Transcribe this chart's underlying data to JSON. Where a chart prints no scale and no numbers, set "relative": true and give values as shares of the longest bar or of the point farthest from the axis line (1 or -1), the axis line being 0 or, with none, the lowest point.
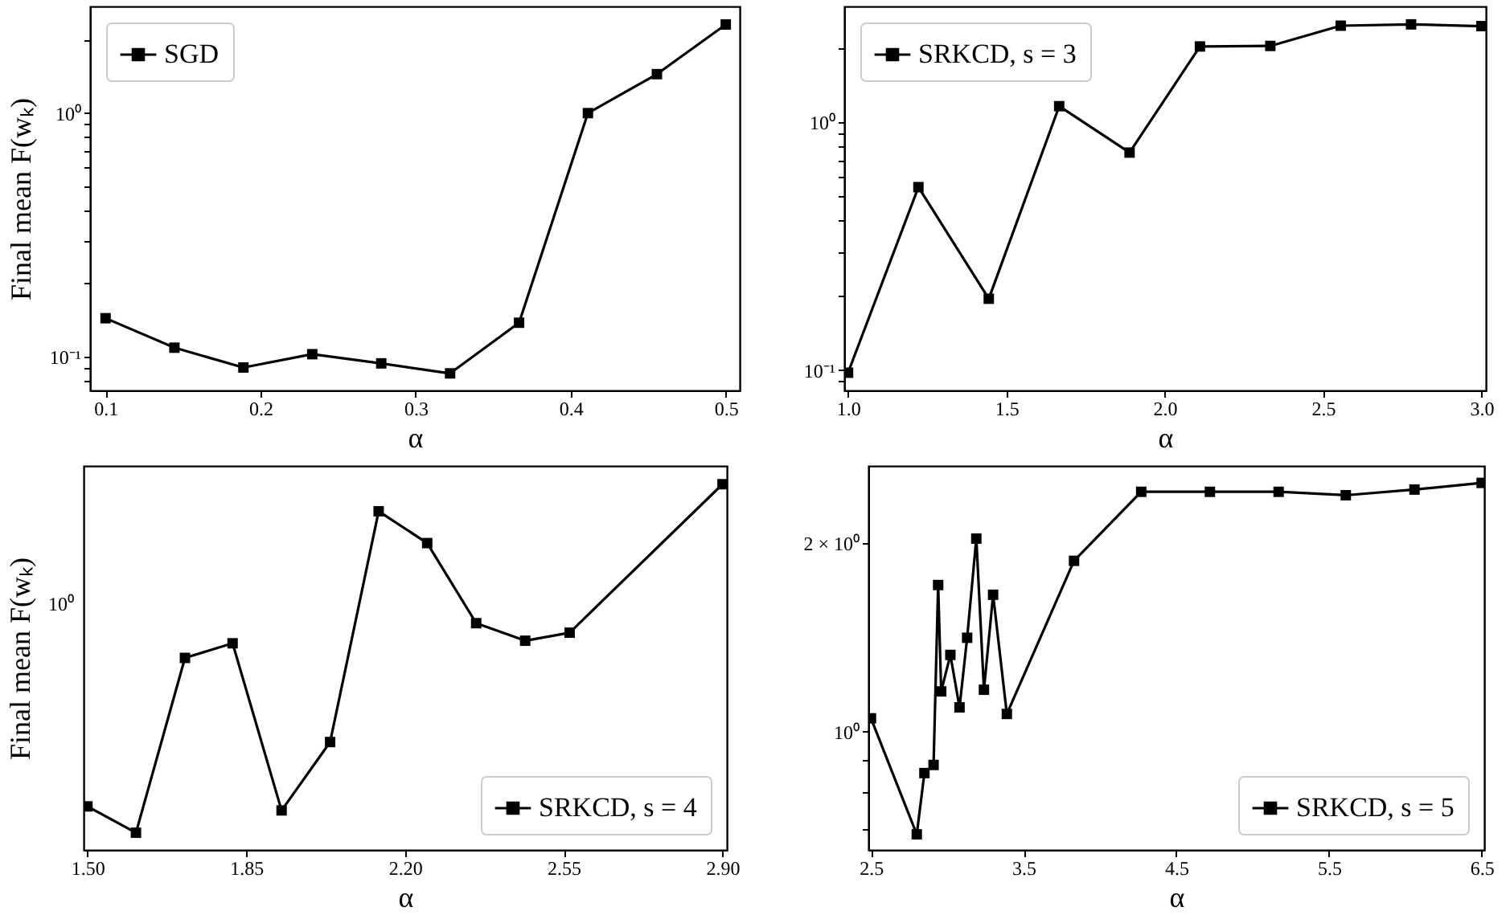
{
  "chart_data": [
    {
      "type": "line",
      "xlabel": "α",
      "ylabel": "Final mean F(wₖ)",
      "log": true,
      "legend": "top left",
      "marker": "square",
      "line_style": "solid",
      "x": [
        0.1,
        0.1444,
        0.1889,
        0.2333,
        0.2778,
        0.3222,
        0.3667,
        0.4111,
        0.4556,
        0.5
      ],
      "series": [
        {
          "name": "SGD",
          "color": "#000000",
          "values": [
            0.144,
            0.109,
            0.0904,
            0.1025,
            0.094,
            0.0855,
            0.138,
            1.0,
            1.445,
            2.31
          ]
        }
      ],
      "xlim": [
        0.09,
        0.509
      ],
      "xticks": [
        0.1,
        0.2,
        0.3,
        0.4,
        0.5
      ],
      "ylim": [
        0.0728,
        2.74
      ],
      "yticks": [
        {
          "value": 0.08,
          "label": null
        },
        {
          "value": 0.09,
          "label": null
        },
        {
          "value": 0.1,
          "label": "10⁻¹"
        },
        {
          "value": 0.2,
          "label": null
        },
        {
          "value": 0.3,
          "label": null
        },
        {
          "value": 0.4,
          "label": null
        },
        {
          "value": 0.5,
          "label": null
        },
        {
          "value": 0.6,
          "label": null
        },
        {
          "value": 0.7,
          "label": null
        },
        {
          "value": 0.8,
          "label": null
        },
        {
          "value": 0.9,
          "label": null
        },
        {
          "value": 1,
          "label": "10⁰"
        },
        {
          "value": 2,
          "label": null
        }
      ]
    },
    {
      "type": "line",
      "xlabel": "α",
      "log": true,
      "legend": "top left",
      "marker": "square",
      "line_style": "solid",
      "x": [
        1.0,
        1.2222,
        1.4444,
        1.6667,
        1.8889,
        2.1111,
        2.3333,
        2.5556,
        2.7778,
        3.0
      ],
      "series": [
        {
          "name": "SRKCD, s = 3",
          "color": "#000000",
          "values": [
            0.0976,
            0.547,
            0.194,
            1.16,
            0.754,
            2.02,
            2.03,
            2.45,
            2.48,
            2.44
          ]
        }
      ],
      "xlim": [
        0.988,
        3.014
      ],
      "xticks": [
        {
          "value": 1,
          "label": "1.0"
        },
        1.5,
        {
          "value": 2,
          "label": "2.0"
        },
        2.5,
        {
          "value": 3,
          "label": "3.0"
        }
      ],
      "ylim": [
        0.0828,
        2.93
      ],
      "yticks": [
        {
          "value": 0.09,
          "label": null
        },
        {
          "value": 0.1,
          "label": "10⁻¹"
        },
        {
          "value": 0.2,
          "label": null
        },
        {
          "value": 0.3,
          "label": null
        },
        {
          "value": 0.4,
          "label": null
        },
        {
          "value": 0.5,
          "label": null
        },
        {
          "value": 0.6,
          "label": null
        },
        {
          "value": 0.7,
          "label": null
        },
        {
          "value": 0.8,
          "label": null
        },
        {
          "value": 0.9,
          "label": null
        },
        {
          "value": 1,
          "label": "10⁰"
        },
        {
          "value": 2,
          "label": null
        }
      ]
    },
    {
      "type": "line",
      "xlabel": "α",
      "ylabel": "Final mean F(wₖ)",
      "relative": true,
      "legend": "bottom right",
      "marker": "square",
      "line_style": "solid",
      "x": [
        1.5,
        1.607,
        1.715,
        1.82,
        1.928,
        2.035,
        2.142,
        2.249,
        2.357,
        2.465,
        2.563,
        2.9
      ],
      "series": [
        {
          "name": "SRKCD, s = 4",
          "color": "#000000",
          "values": [
            0.119,
            0.047,
            0.525,
            0.565,
            0.108,
            0.295,
            0.926,
            0.839,
            0.62,
            0.572,
            0.594,
            1
          ]
        }
      ],
      "xlim": [
        1.4916,
        2.9096
      ],
      "xticks": [
        {
          "value": 1.5,
          "label": "1.50"
        },
        1.85,
        {
          "value": 2.2,
          "label": "2.20"
        },
        2.55,
        {
          "value": 2.9,
          "label": "2.90"
        }
      ],
      "annotations": [
        "10⁰"
      ]
    },
    {
      "type": "line",
      "xlabel": "α",
      "log": true,
      "legend": "bottom right",
      "marker": "square",
      "line_style": "solid",
      "x": [
        2.5,
        2.8,
        2.85,
        2.91,
        2.94,
        2.96,
        3.02,
        3.08,
        3.13,
        3.19,
        3.24,
        3.3,
        3.39,
        3.83,
        4.27,
        4.72,
        5.17,
        5.61,
        6.06,
        6.5
      ],
      "series": [
        {
          "name": "SRKCD, s = 5",
          "color": "#000000",
          "values": [
            1.05,
            0.686,
            0.859,
            0.885,
            1.712,
            1.159,
            1.325,
            1.093,
            1.411,
            2.03,
            1.166,
            1.652,
            1.067,
            1.871,
            2.41,
            2.41,
            2.41,
            2.38,
            2.43,
            2.49
          ]
        }
      ],
      "xlim": [
        2.483,
        6.517
      ],
      "xticks": [
        2.5,
        3.5,
        4.5,
        5.5,
        6.5
      ],
      "ylim": [
        0.648,
        2.65
      ],
      "yticks": [
        {
          "value": 0.7,
          "label": null
        },
        {
          "value": 0.8,
          "label": null
        },
        {
          "value": 0.9,
          "label": null
        },
        {
          "value": 1,
          "label": "10⁰"
        },
        {
          "value": 2,
          "label": "2 × 10⁰"
        }
      ]
    }
  ]
}
